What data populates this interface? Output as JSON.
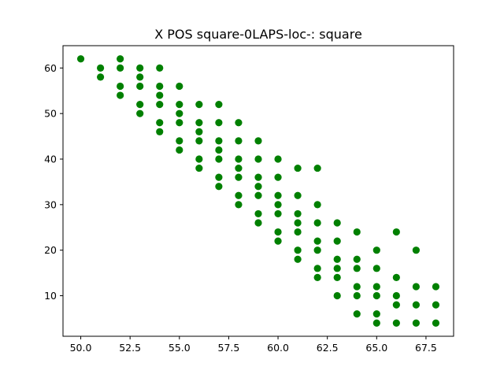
{
  "chart_data": {
    "type": "scatter",
    "title": "X POS square-0LAPS-loc-: square",
    "xlabel": "",
    "ylabel": "",
    "xlim": [
      49.1,
      68.9
    ],
    "ylim": [
      1.1,
      64.9
    ],
    "xticks": [
      50.0,
      52.5,
      55.0,
      57.5,
      60.0,
      62.5,
      65.0,
      67.5
    ],
    "xtick_labels": [
      "50.0",
      "52.5",
      "55.0",
      "57.5",
      "60.0",
      "62.5",
      "65.0",
      "67.5"
    ],
    "yticks": [
      10,
      20,
      30,
      40,
      50,
      60
    ],
    "ytick_labels": [
      "10",
      "20",
      "30",
      "40",
      "50",
      "60"
    ],
    "grid": false,
    "series": [
      {
        "color": "#008000",
        "points": [
          [
            50,
            62
          ],
          [
            51,
            60
          ],
          [
            51,
            58
          ],
          [
            52,
            62
          ],
          [
            52,
            60
          ],
          [
            52,
            56
          ],
          [
            52,
            54
          ],
          [
            53,
            60
          ],
          [
            53,
            58
          ],
          [
            53,
            56
          ],
          [
            53,
            52
          ],
          [
            53,
            50
          ],
          [
            54,
            60
          ],
          [
            54,
            56
          ],
          [
            54,
            54
          ],
          [
            54,
            52
          ],
          [
            54,
            48
          ],
          [
            54,
            46
          ],
          [
            55,
            56
          ],
          [
            55,
            52
          ],
          [
            55,
            50
          ],
          [
            55,
            48
          ],
          [
            55,
            44
          ],
          [
            55,
            42
          ],
          [
            56,
            52
          ],
          [
            56,
            48
          ],
          [
            56,
            46
          ],
          [
            56,
            44
          ],
          [
            56,
            40
          ],
          [
            56,
            38
          ],
          [
            57,
            52
          ],
          [
            57,
            48
          ],
          [
            57,
            44
          ],
          [
            57,
            42
          ],
          [
            57,
            40
          ],
          [
            57,
            36
          ],
          [
            57,
            34
          ],
          [
            58,
            48
          ],
          [
            58,
            44
          ],
          [
            58,
            40
          ],
          [
            58,
            38
          ],
          [
            58,
            36
          ],
          [
            58,
            32
          ],
          [
            58,
            30
          ],
          [
            59,
            44
          ],
          [
            59,
            40
          ],
          [
            59,
            36
          ],
          [
            59,
            34
          ],
          [
            59,
            32
          ],
          [
            59,
            28
          ],
          [
            59,
            26
          ],
          [
            60,
            40
          ],
          [
            60,
            36
          ],
          [
            60,
            32
          ],
          [
            60,
            30
          ],
          [
            60,
            28
          ],
          [
            60,
            24
          ],
          [
            60,
            22
          ],
          [
            61,
            38
          ],
          [
            61,
            32
          ],
          [
            61,
            28
          ],
          [
            61,
            26
          ],
          [
            61,
            24
          ],
          [
            61,
            20
          ],
          [
            61,
            18
          ],
          [
            62,
            38
          ],
          [
            62,
            30
          ],
          [
            62,
            26
          ],
          [
            62,
            22
          ],
          [
            62,
            20
          ],
          [
            62,
            16
          ],
          [
            62,
            14
          ],
          [
            63,
            26
          ],
          [
            63,
            22
          ],
          [
            63,
            18
          ],
          [
            63,
            16
          ],
          [
            63,
            14
          ],
          [
            63,
            10
          ],
          [
            64,
            24
          ],
          [
            64,
            18
          ],
          [
            64,
            16
          ],
          [
            64,
            12
          ],
          [
            64,
            10
          ],
          [
            64,
            6
          ],
          [
            65,
            20
          ],
          [
            65,
            16
          ],
          [
            65,
            12
          ],
          [
            65,
            10
          ],
          [
            65,
            6
          ],
          [
            65,
            4
          ],
          [
            66,
            24
          ],
          [
            66,
            14
          ],
          [
            66,
            10
          ],
          [
            66,
            8
          ],
          [
            66,
            4
          ],
          [
            67,
            20
          ],
          [
            67,
            12
          ],
          [
            67,
            8
          ],
          [
            67,
            4
          ],
          [
            68,
            12
          ],
          [
            68,
            8
          ],
          [
            68,
            4
          ]
        ]
      }
    ]
  }
}
